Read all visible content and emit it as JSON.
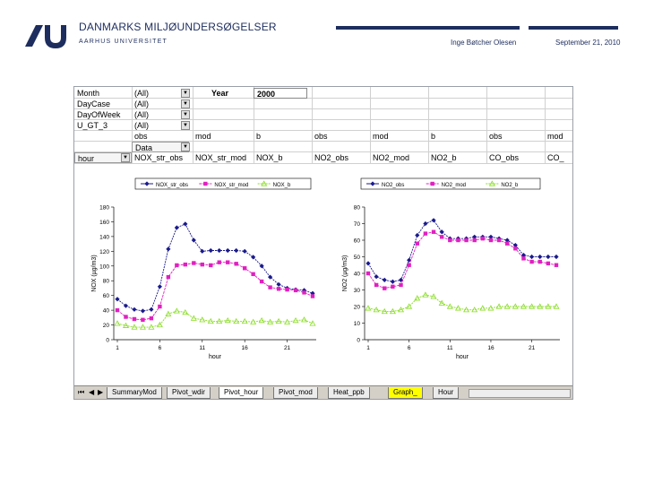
{
  "header": {
    "org_title": "DANMARKS MILJØUNDERSØGELSER",
    "org_subtitle": "AARHUS UNIVERSITET",
    "author": "Inge Bøtcher Olesen",
    "date": "September 21, 2010",
    "brand_color": "#1d2d5e"
  },
  "sheet": {
    "filters": [
      {
        "label": "Month",
        "value": "(All)"
      },
      {
        "label": "DayCase",
        "value": "(All)"
      },
      {
        "label": "DayOfWeek",
        "value": "(All)"
      },
      {
        "label": "U_GT_3",
        "value": "(All)"
      }
    ],
    "year_label": "Year",
    "year_value": "2000",
    "group_row": [
      "obs",
      "mod",
      "b",
      "obs",
      "mod",
      "b",
      "obs",
      "mod"
    ],
    "data_label": "Data",
    "row_field": "hour",
    "columns": [
      "NOX_str_obs",
      "NOX_str_mod",
      "NOX_b",
      "NO2_obs",
      "NO2_mod",
      "NO2_b",
      "CO_obs",
      "CO_"
    ],
    "tabs": [
      "SummaryMod",
      "Pivot_wdir",
      "Pivot_hour",
      "Pivot_mod",
      "Heat_ppb",
      "Graph_",
      "Hour"
    ],
    "active_tab": "Pivot_hour"
  },
  "chart_data": [
    {
      "type": "line",
      "ylabel": "NOX (µg/m3)",
      "xlabel": "hour",
      "x": [
        1,
        2,
        3,
        4,
        5,
        6,
        7,
        8,
        9,
        10,
        11,
        12,
        13,
        14,
        15,
        16,
        17,
        18,
        19,
        20,
        21,
        22,
        23,
        24
      ],
      "ylim": [
        0,
        180
      ],
      "yticks": [
        0,
        20,
        40,
        60,
        80,
        100,
        120,
        140,
        160,
        180
      ],
      "xticks": [
        1,
        6,
        11,
        16,
        21
      ],
      "series": [
        {
          "name": "NOX_str_obs",
          "color": "#1a1a8c",
          "marker": "diamond",
          "values": [
            55,
            46,
            41,
            39,
            41,
            72,
            123,
            152,
            157,
            135,
            120,
            121,
            121,
            121,
            121,
            120,
            112,
            100,
            85,
            75,
            70,
            68,
            67,
            63
          ]
        },
        {
          "name": "NOX_str_mod",
          "color": "#e020c0",
          "marker": "square",
          "values": [
            40,
            31,
            28,
            27,
            29,
            45,
            85,
            101,
            102,
            104,
            102,
            101,
            105,
            105,
            103,
            97,
            89,
            79,
            71,
            69,
            68,
            67,
            64,
            59
          ]
        },
        {
          "name": "NOX_b",
          "color": "#88dd22",
          "marker": "triangle",
          "values": [
            22,
            19,
            17,
            17,
            17,
            20,
            35,
            39,
            37,
            29,
            27,
            25,
            25,
            26,
            25,
            25,
            24,
            26,
            24,
            25,
            24,
            26,
            27,
            22
          ]
        }
      ],
      "legend": "top"
    },
    {
      "type": "line",
      "ylabel": "NO2 (µg/m3)",
      "xlabel": "hour",
      "x": [
        1,
        2,
        3,
        4,
        5,
        6,
        7,
        8,
        9,
        10,
        11,
        12,
        13,
        14,
        15,
        16,
        17,
        18,
        19,
        20,
        21,
        22,
        23,
        24
      ],
      "ylim": [
        0,
        80
      ],
      "yticks": [
        0,
        10,
        20,
        30,
        40,
        50,
        60,
        70,
        80
      ],
      "xticks": [
        1,
        6,
        11,
        16,
        21
      ],
      "series": [
        {
          "name": "NO2_obs",
          "color": "#1a1a8c",
          "marker": "diamond",
          "values": [
            46,
            38,
            36,
            35,
            36,
            48,
            63,
            70,
            72,
            65,
            61,
            61,
            61,
            62,
            62,
            62,
            61,
            60,
            57,
            51,
            50,
            50,
            50,
            50
          ]
        },
        {
          "name": "NO2_mod",
          "color": "#e020c0",
          "marker": "square",
          "values": [
            40,
            33,
            31,
            32,
            33,
            45,
            58,
            64,
            65,
            62,
            60,
            60,
            60,
            60,
            61,
            60,
            60,
            58,
            55,
            49,
            47,
            47,
            46,
            45
          ]
        },
        {
          "name": "NO2_b",
          "color": "#88dd22",
          "marker": "triangle",
          "values": [
            19,
            18,
            17,
            17,
            18,
            20,
            25,
            27,
            26,
            22,
            20,
            19,
            18,
            18,
            19,
            19,
            20,
            20,
            20,
            20,
            20,
            20,
            20,
            20
          ]
        }
      ],
      "legend": "top"
    }
  ]
}
